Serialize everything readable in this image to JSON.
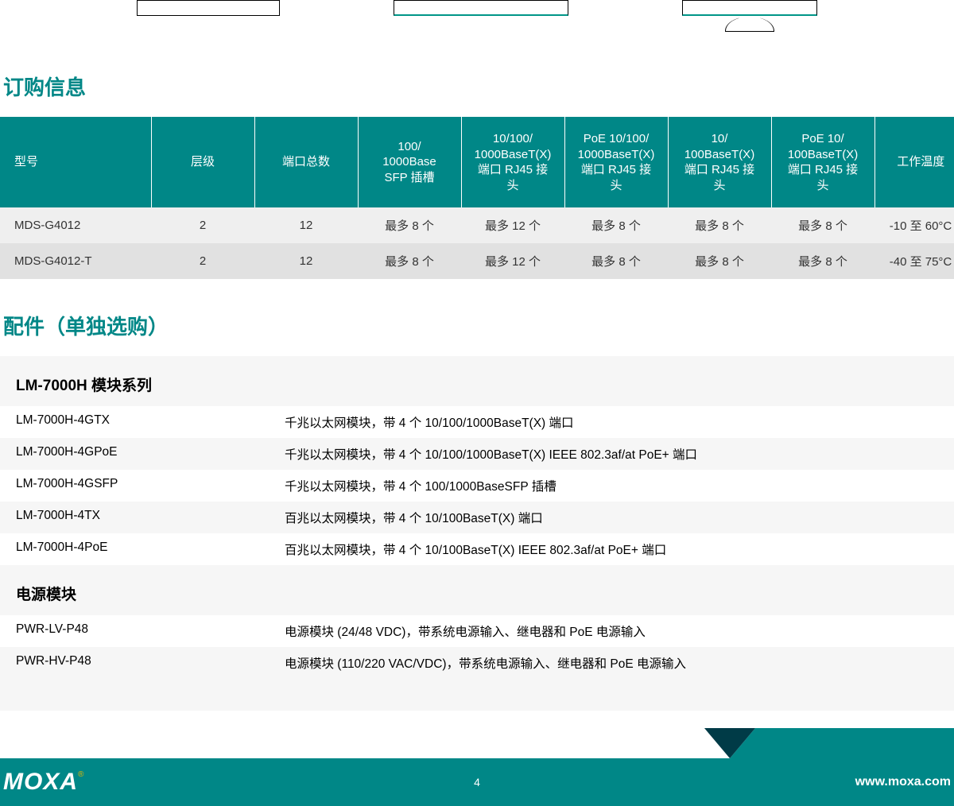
{
  "colors": {
    "brand": "#008787",
    "header_bg": "#008787",
    "header_text": "#ffffff",
    "row_odd": "#efefef",
    "row_even": "#e1e1e1",
    "section_bg": "#f6f6f6",
    "footer_bg": "#008787",
    "footer_triangle": "#003b47"
  },
  "sections": {
    "order_title": "订购信息",
    "accessories_title": "配件（单独选购）"
  },
  "order_table": {
    "columns": [
      "型号",
      "层级",
      "端口总数",
      "100/\n1000Base\nSFP 插槽",
      "10/100/\n1000BaseT(X)\n端口 RJ45 接\n头",
      "PoE 10/100/\n1000BaseT(X)\n端口 RJ45 接\n头",
      "10/\n100BaseT(X)\n端口 RJ45 接\n头",
      "PoE 10/\n100BaseT(X)\n端口 RJ45 接\n头",
      "工作温度"
    ],
    "rows": [
      [
        "MDS-G4012",
        "2",
        "12",
        "最多 8 个",
        "最多 12 个",
        "最多 8 个",
        "最多 8 个",
        "最多 8 个",
        "-10 至 60°C"
      ],
      [
        "MDS-G4012-T",
        "2",
        "12",
        "最多 8 个",
        "最多 12 个",
        "最多 8 个",
        "最多 8 个",
        "最多 8 个",
        "-40 至 75°C"
      ]
    ]
  },
  "accessories": {
    "groups": [
      {
        "title": "LM-7000H 模块系列",
        "items": [
          {
            "name": "LM-7000H-4GTX",
            "desc": "千兆以太网模块，带 4 个 10/100/1000BaseT(X) 端口"
          },
          {
            "name": "LM-7000H-4GPoE",
            "desc": "千兆以太网模块，带 4 个 10/100/1000BaseT(X) IEEE 802.3af/at PoE+ 端口"
          },
          {
            "name": "LM-7000H-4GSFP",
            "desc": "千兆以太网模块，带 4 个 100/1000BaseSFP 插槽"
          },
          {
            "name": "LM-7000H-4TX",
            "desc": "百兆以太网模块，带 4 个 10/100BaseT(X) 端口"
          },
          {
            "name": "LM-7000H-4PoE",
            "desc": "百兆以太网模块，带 4 个 10/100BaseT(X) IEEE 802.3af/at PoE+ 端口"
          }
        ]
      },
      {
        "title": "电源模块",
        "items": [
          {
            "name": "PWR-LV-P48",
            "desc": "电源模块 (24/48 VDC)，带系统电源输入、继电器和 PoE 电源输入"
          },
          {
            "name": "PWR-HV-P48",
            "desc": "电源模块 (110/220 VAC/VDC)，带系统电源输入、继电器和 PoE 电源输入"
          }
        ]
      }
    ]
  },
  "footer": {
    "logo": "MOXA",
    "reg": "®",
    "page": "4",
    "url": "www.moxa.com"
  }
}
